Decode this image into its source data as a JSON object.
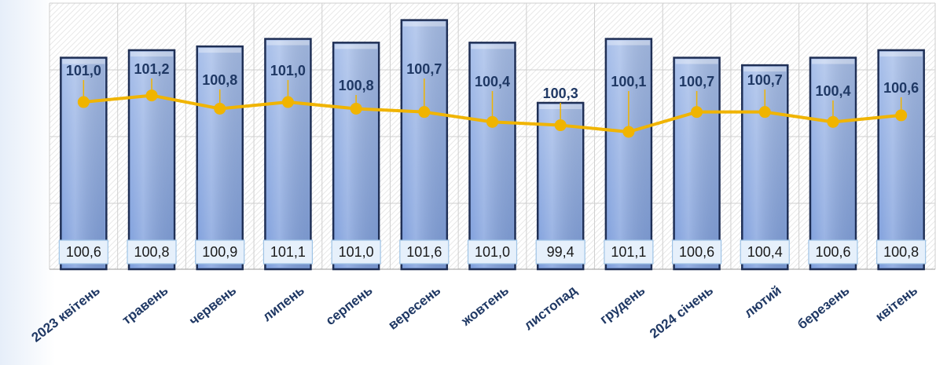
{
  "chart_data": {
    "type": "bar",
    "categories": [
      "2023 квітень",
      "травень",
      "червень",
      "липень",
      "серпень",
      "вересень",
      "жовтень",
      "листопад",
      "грудень",
      "2024 січень",
      "лютий",
      "березень",
      "квітень"
    ],
    "series": [
      {
        "type": "bar",
        "values": [
          100.6,
          100.8,
          100.9,
          101.1,
          101.0,
          101.6,
          101.0,
          99.4,
          101.1,
          100.6,
          100.4,
          100.6,
          100.8
        ],
        "labels": [
          "100,6",
          "100,8",
          "100,9",
          "101,1",
          "101,0",
          "101,6",
          "101,0",
          "99,4",
          "101,1",
          "100,6",
          "100,4",
          "100,6",
          "100,8"
        ]
      },
      {
        "type": "line",
        "values": [
          101.0,
          101.2,
          100.8,
          101.0,
          100.8,
          100.7,
          100.4,
          100.3,
          100.1,
          100.7,
          100.7,
          100.4,
          100.6
        ],
        "labels": [
          "101,0",
          "101,2",
          "100,8",
          "101,0",
          "100,8",
          "100,7",
          "100,4",
          "100,3",
          "100,1",
          "100,7",
          "100,7",
          "100,4",
          "100,6"
        ]
      }
    ],
    "grid": true,
    "legend": "none",
    "colors": {
      "bar_fill_top": "#a9c0ea",
      "bar_fill_bottom": "#7f9fdc",
      "bar_edge": "#1f2f55",
      "line": "#f0b400",
      "label_text": "#1f3864",
      "value_box_fill": "#e6f0fb",
      "value_box_border": "#9ec3e6",
      "grid": "#cfcfcf"
    }
  }
}
